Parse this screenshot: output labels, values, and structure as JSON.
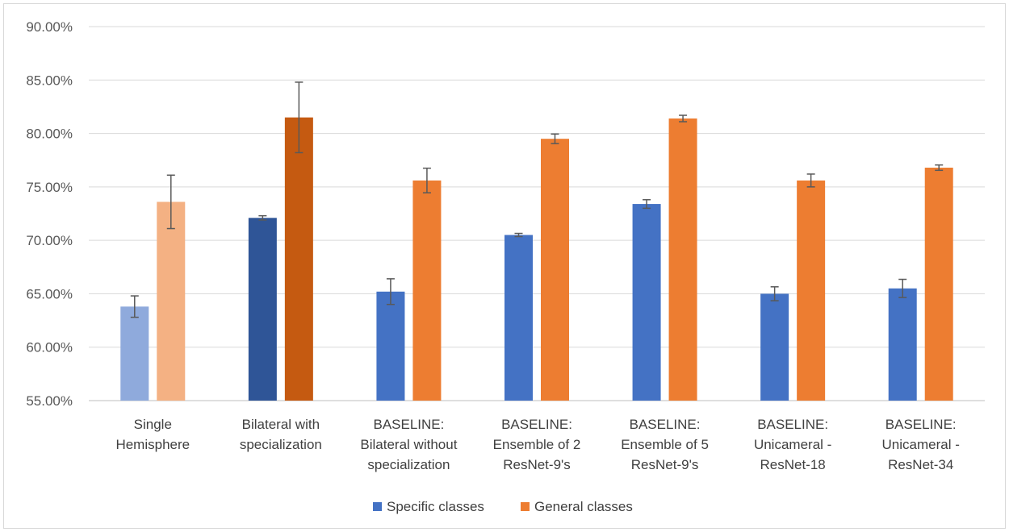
{
  "chart_data": {
    "type": "bar",
    "title": "",
    "xlabel": "",
    "ylabel": "",
    "ylim": [
      55,
      90
    ],
    "yticks": [
      "55.00%",
      "60.00%",
      "65.00%",
      "70.00%",
      "75.00%",
      "80.00%",
      "85.00%",
      "90.00%"
    ],
    "grid": true,
    "legend_position": "bottom",
    "categories": [
      [
        "Single",
        "Hemisphere"
      ],
      [
        "Bilateral with",
        "specialization"
      ],
      [
        "BASELINE:",
        "Bilateral without",
        "specialization"
      ],
      [
        "BASELINE:",
        "Ensemble of 2",
        "ResNet-9's"
      ],
      [
        "BASELINE:",
        "Ensemble of 5",
        "ResNet-9's"
      ],
      [
        "BASELINE:",
        "Unicameral -",
        "ResNet-18"
      ],
      [
        "BASELINE:",
        "Unicameral -",
        "ResNet-34"
      ]
    ],
    "series": [
      {
        "name": "Specific classes",
        "color": "#4472c4",
        "bar_colors": [
          "#8faadc",
          "#2f5597",
          "#4472c4",
          "#4472c4",
          "#4472c4",
          "#4472c4",
          "#4472c4"
        ],
        "values": [
          63.8,
          72.1,
          65.2,
          70.5,
          73.4,
          65.0,
          65.5
        ],
        "error": [
          1.0,
          0.2,
          1.2,
          0.15,
          0.4,
          0.65,
          0.85
        ]
      },
      {
        "name": "General classes",
        "color": "#ed7d31",
        "bar_colors": [
          "#f4b183",
          "#c55a11",
          "#ed7d31",
          "#ed7d31",
          "#ed7d31",
          "#ed7d31",
          "#ed7d31"
        ],
        "values": [
          73.6,
          81.5,
          75.6,
          79.5,
          81.4,
          75.6,
          76.8
        ],
        "error": [
          2.5,
          3.3,
          1.15,
          0.45,
          0.3,
          0.6,
          0.25
        ]
      }
    ]
  }
}
